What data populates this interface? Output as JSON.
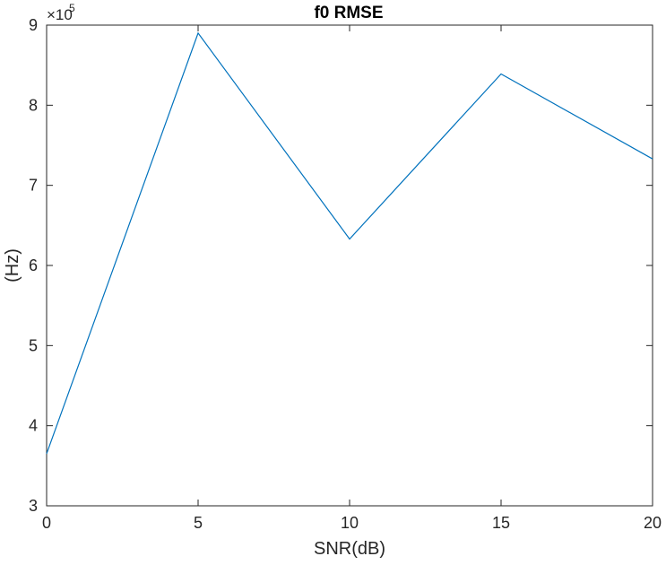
{
  "chart_data": {
    "type": "line",
    "title": "f0 RMSE",
    "xlabel": "SNR(dB)",
    "ylabel": "(Hz)",
    "x": [
      0,
      5,
      10,
      15,
      20
    ],
    "series": [
      {
        "values": [
          365000,
          890000,
          633000,
          839000,
          733000
        ],
        "color": "#0072BD"
      }
    ],
    "xlim": [
      0,
      20
    ],
    "ylim": [
      300000,
      900000
    ],
    "xticks": [
      0,
      5,
      10,
      15,
      20
    ],
    "xtick_labels": [
      "0",
      "5",
      "10",
      "15",
      "20"
    ],
    "yticks": [
      300000,
      400000,
      500000,
      600000,
      700000,
      800000,
      900000
    ],
    "ytick_labels": [
      "3",
      "4",
      "5",
      "6",
      "7",
      "8",
      "9"
    ],
    "y_exponent": {
      "prefix": "×10",
      "power": "5"
    },
    "grid": false,
    "legend": null
  }
}
